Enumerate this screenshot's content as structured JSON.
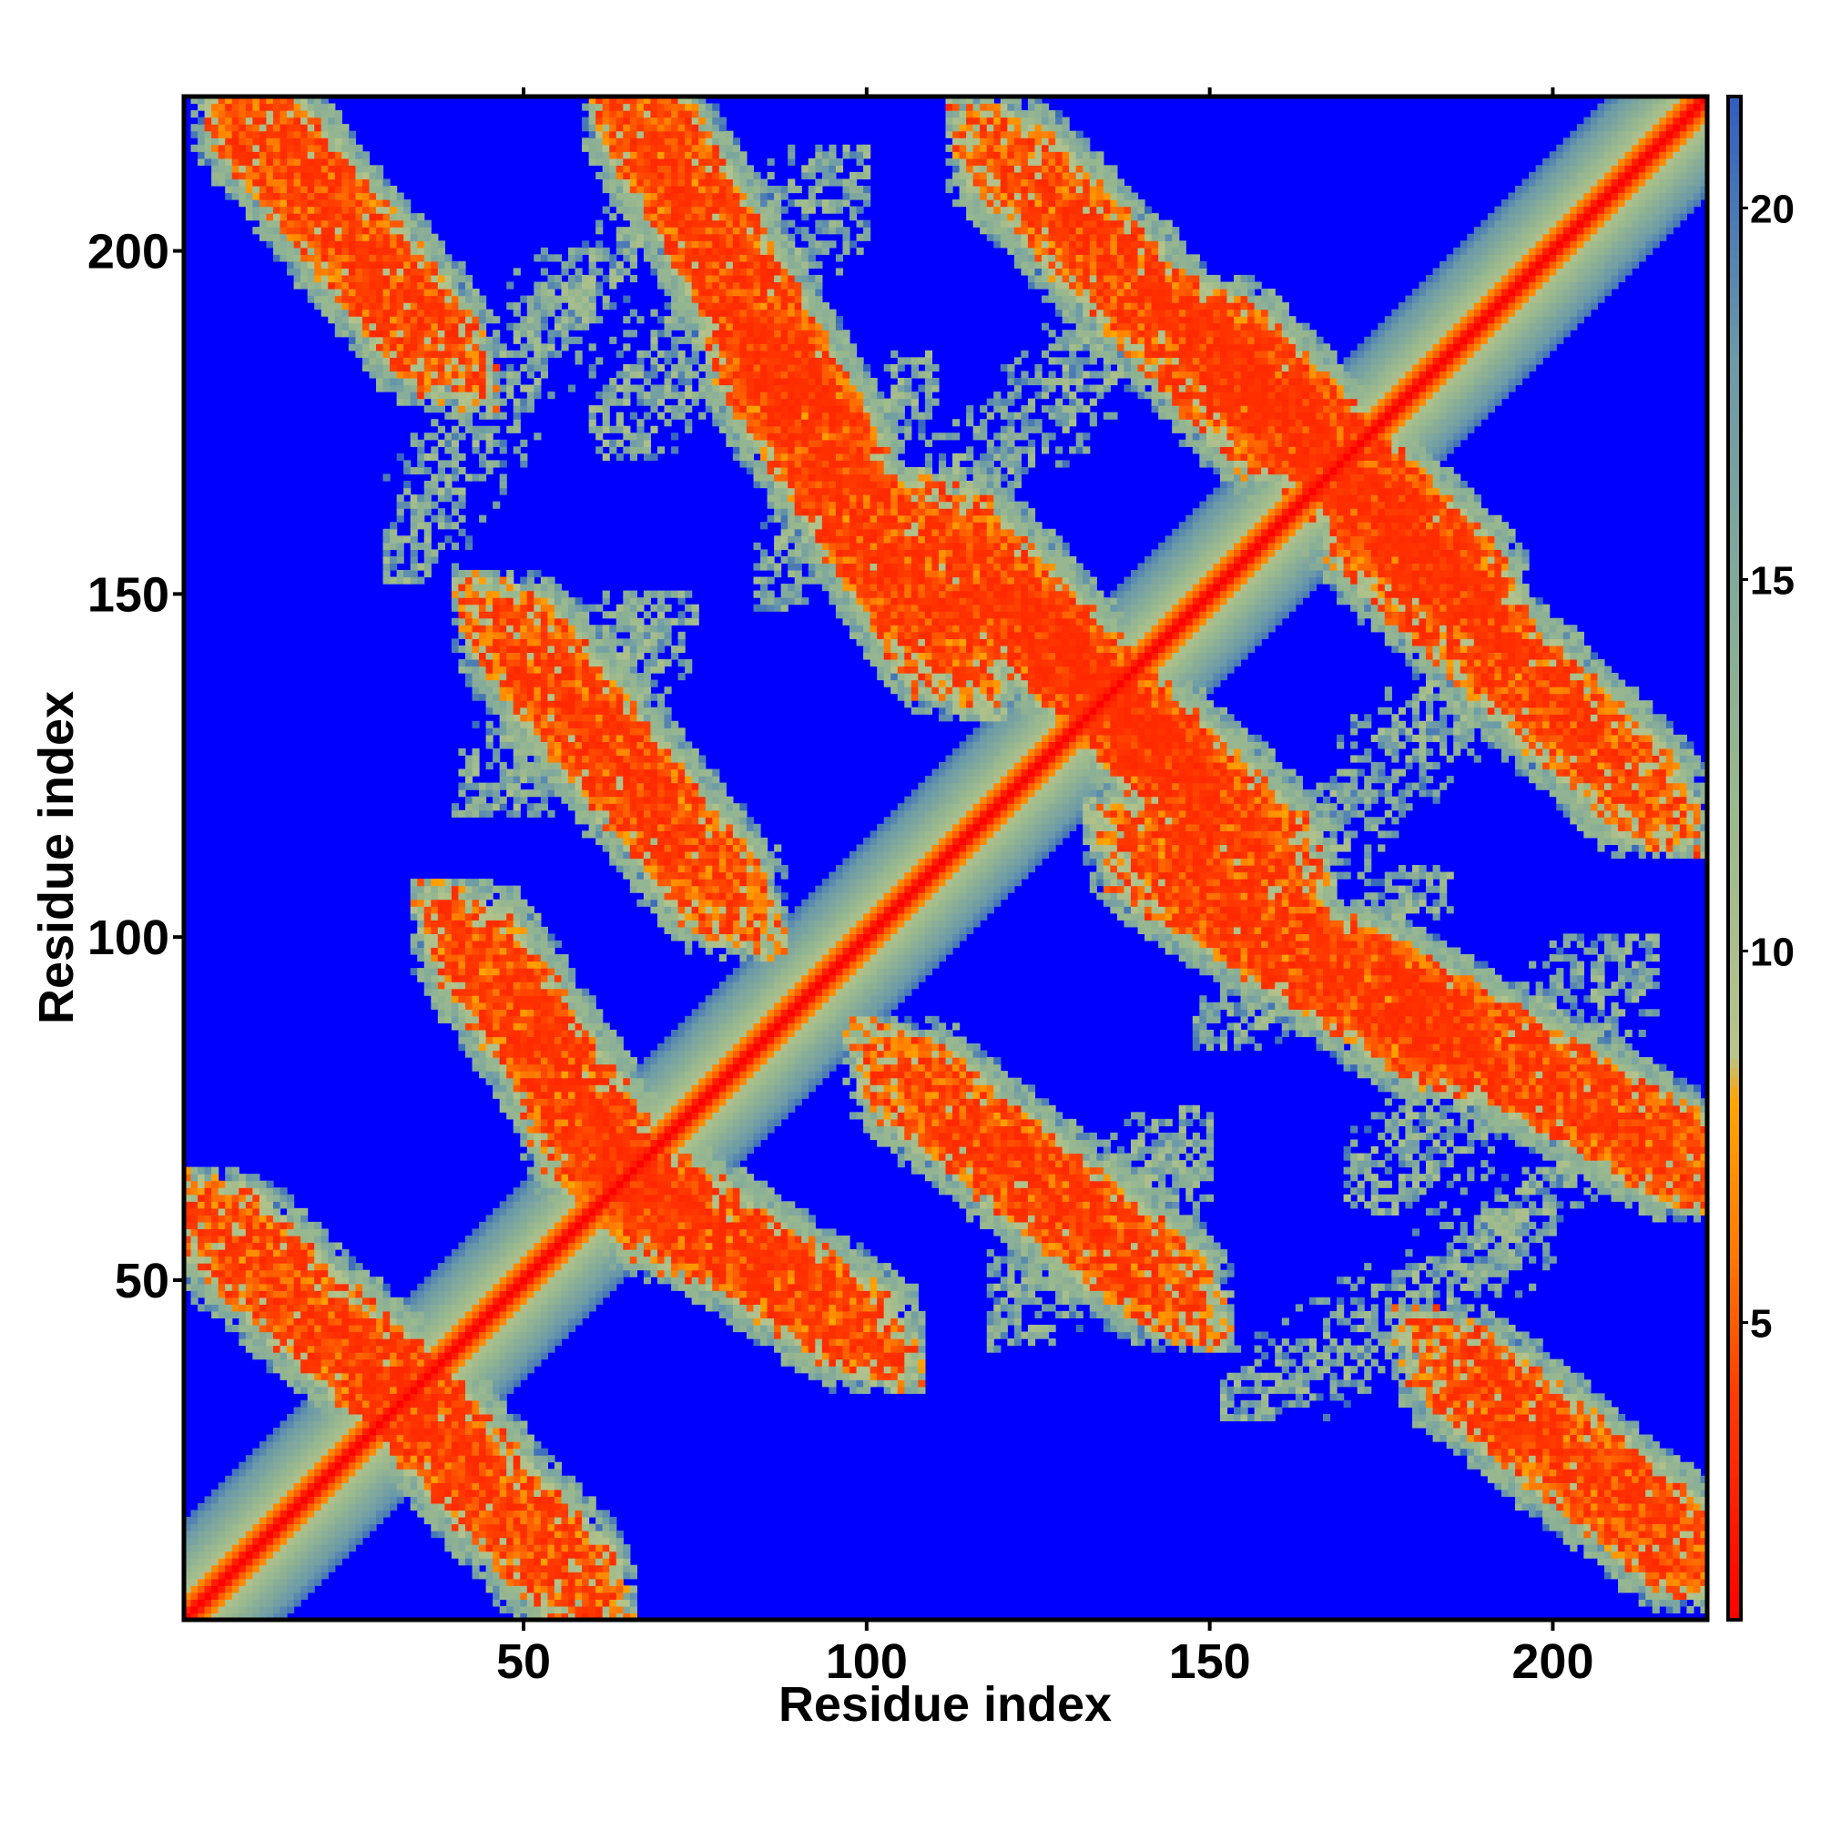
{
  "chart_data": {
    "type": "heatmap",
    "title": "",
    "xlabel": "Residue index",
    "ylabel": "Residue index",
    "x_range": [
      1,
      222
    ],
    "y_range": [
      1,
      222
    ],
    "x_ticks": [
      50,
      100,
      150,
      200
    ],
    "y_ticks": [
      50,
      100,
      150,
      200
    ],
    "colorbar": {
      "ticks": [
        5,
        10,
        15,
        20
      ],
      "range": [
        1,
        21.5
      ],
      "colors": [
        {
          "value": 1,
          "color": "#ff0000"
        },
        {
          "value": 4,
          "color": "#ff3c00"
        },
        {
          "value": 6,
          "color": "#ff7b00"
        },
        {
          "value": 8,
          "color": "#ffa500"
        },
        {
          "value": 8.6,
          "color": "#b8c48a"
        },
        {
          "value": 12,
          "color": "#9ab98e"
        },
        {
          "value": 18,
          "color": "#6b9aa8"
        },
        {
          "value": 21.5,
          "color": "#2e5fc0"
        }
      ],
      "background_color": "#0000ff",
      "cutoff": 21.5
    },
    "features": {
      "description_free_ranges": true,
      "diagonal": {
        "start": 1,
        "end": 222,
        "core_width": 3,
        "halo_width": 14
      },
      "antiparallel_bands": [
        {
          "a1": 5,
          "a2": 38,
          "b1": 28,
          "b2": 58
        },
        {
          "a1": 10,
          "a2": 38,
          "b1": 185,
          "b2": 220
        },
        {
          "a1": 42,
          "a2": 70,
          "b1": 58,
          "b2": 100
        },
        {
          "a1": 48,
          "a2": 80,
          "b1": 105,
          "b2": 145
        },
        {
          "a1": 67,
          "a2": 96,
          "b1": 170,
          "b2": 220
        },
        {
          "a1": 84,
          "a2": 112,
          "b1": 140,
          "b2": 184
        },
        {
          "a1": 112,
          "a2": 152,
          "b1": 116,
          "b2": 160
        },
        {
          "a1": 120,
          "a2": 160,
          "b1": 172,
          "b2": 214
        },
        {
          "a1": 150,
          "a2": 188,
          "b1": 150,
          "b2": 188
        }
      ],
      "parallel_bands": [
        {
          "x1": 60,
          "x2": 100,
          "y1": 170,
          "y2": 215
        },
        {
          "x1": 40,
          "x2": 70,
          "y1": 118,
          "y2": 150
        },
        {
          "x1": 84,
          "x2": 110,
          "y1": 148,
          "y2": 185
        },
        {
          "x1": 118,
          "x2": 150,
          "y1": 48,
          "y2": 75
        },
        {
          "x1": 150,
          "x2": 190,
          "y1": 100,
          "y2": 138
        },
        {
          "x1": 152,
          "x2": 200,
          "y1": 30,
          "y2": 60
        },
        {
          "x1": 188,
          "x2": 215,
          "y1": 55,
          "y2": 75
        }
      ]
    }
  }
}
